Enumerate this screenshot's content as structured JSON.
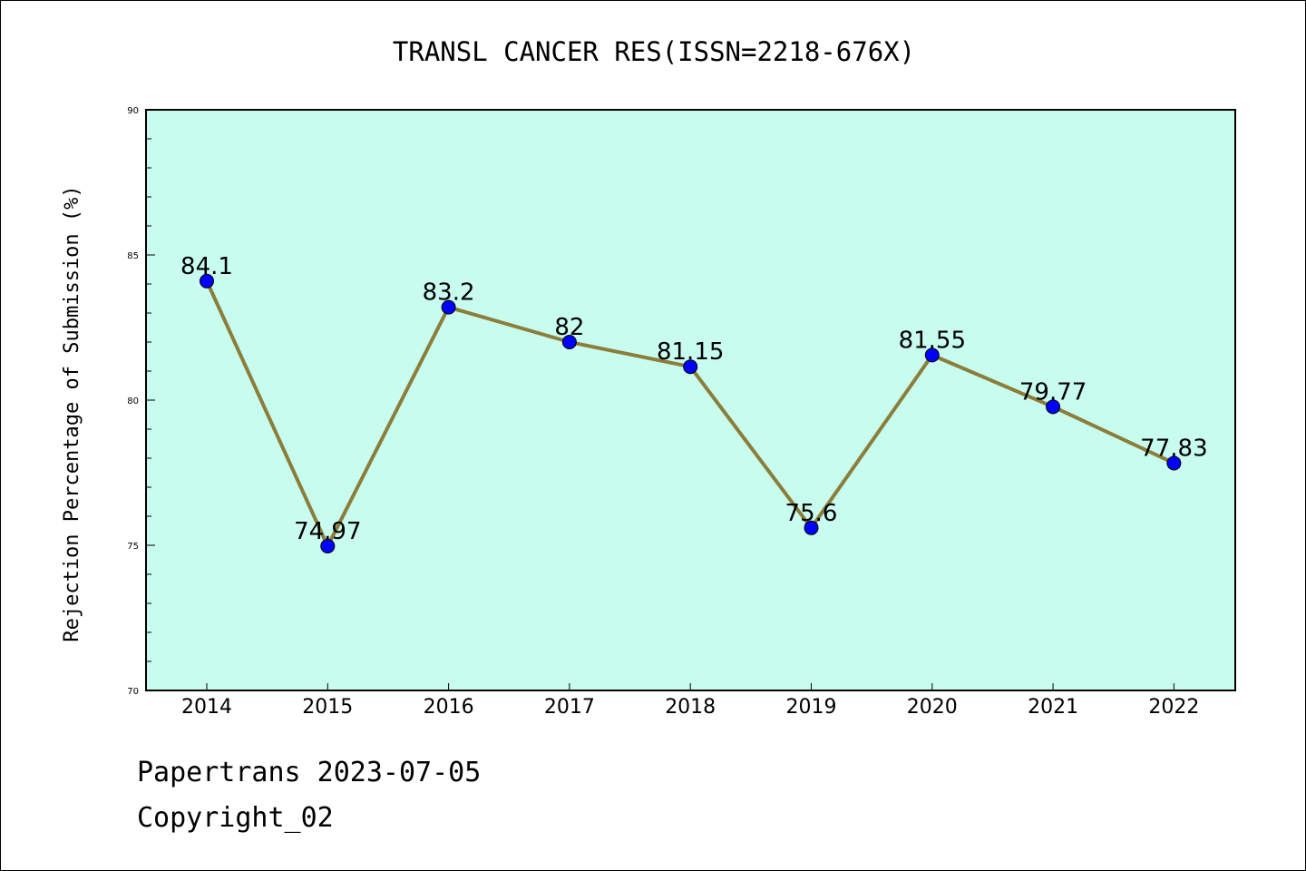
{
  "chart_data": {
    "type": "line",
    "title": "TRANSL CANCER RES(ISSN=2218-676X)",
    "ylabel": "Rejection Percentage of Submission (%)",
    "xlabel": "",
    "categories": [
      "2014",
      "2015",
      "2016",
      "2017",
      "2018",
      "2019",
      "2020",
      "2021",
      "2022"
    ],
    "values": [
      84.1,
      74.97,
      83.2,
      82,
      81.15,
      75.6,
      81.55,
      79.77,
      77.83
    ],
    "value_labels": [
      "84.1",
      "74.97",
      "83.2",
      "82",
      "81.15",
      "75.6",
      "81.55",
      "79.77",
      "77.83"
    ],
    "ylim": [
      70,
      90
    ],
    "yticks": [
      "70",
      "75",
      "80",
      "85",
      "90"
    ],
    "grid": false,
    "colors": {
      "plot_background": "#c8fcee",
      "line": "#8b7d3a",
      "marker": "#0000ff"
    }
  },
  "footer": {
    "line1": "Papertrans 2023-07-05",
    "line2": "Copyright_02"
  }
}
